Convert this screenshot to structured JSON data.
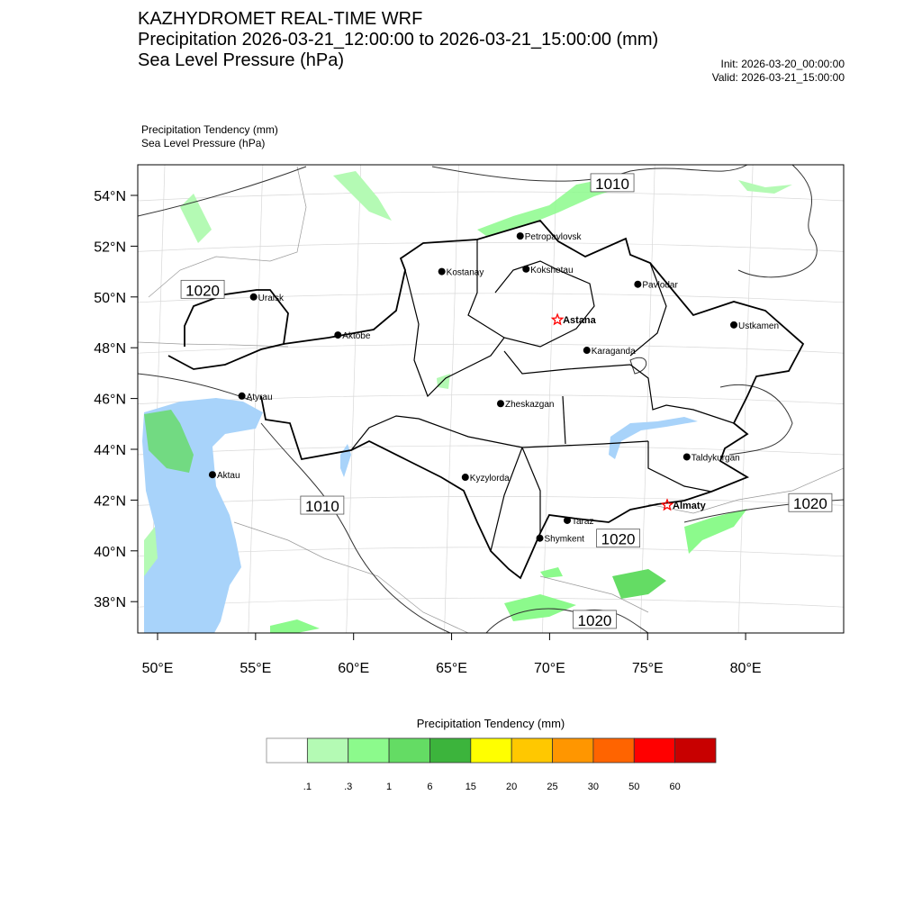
{
  "header": {
    "title": "KAZHYDROMET REAL-TIME WRF",
    "subtitle_precip": "Precipitation 2026-03-21_12:00:00 to 2026-03-21_15:00:00 (mm)",
    "subtitle_slp": "Sea Level Pressure  (hPa)",
    "init": "Init: 2026-03-20_00:00:00",
    "valid": "Valid: 2026-03-21_15:00:00"
  },
  "map_labels": {
    "field1": "Precipitation Tendency   (mm)",
    "field2": "Sea Level Pressure   (hPa)"
  },
  "axes": {
    "lat_ticks": [
      "54°N",
      "52°N",
      "50°N",
      "48°N",
      "46°N",
      "44°N",
      "42°N",
      "40°N",
      "38°N"
    ],
    "lat_values": [
      54,
      52,
      50,
      48,
      46,
      44,
      42,
      40,
      38
    ],
    "lon_ticks": [
      "50°E",
      "55°E",
      "60°E",
      "65°E",
      "70°E",
      "75°E",
      "80°E"
    ],
    "lon_values": [
      50,
      55,
      60,
      65,
      70,
      75,
      80
    ]
  },
  "cities": [
    {
      "name": "Petropavlovsk",
      "lon": 68.5,
      "lat": 52.4
    },
    {
      "name": "Kostanay",
      "lon": 64.5,
      "lat": 51.0
    },
    {
      "name": "Kokshetau",
      "lon": 68.8,
      "lat": 51.1
    },
    {
      "name": "Pavlodar",
      "lon": 74.5,
      "lat": 50.5
    },
    {
      "name": "Uralsk",
      "lon": 54.9,
      "lat": 50.0
    },
    {
      "name": "Astana",
      "lon": 70.4,
      "lat": 49.1,
      "capital": true
    },
    {
      "name": "Aktobe",
      "lon": 59.2,
      "lat": 48.5
    },
    {
      "name": "Ustkamen",
      "lon": 79.4,
      "lat": 48.9
    },
    {
      "name": "Karaganda",
      "lon": 71.9,
      "lat": 47.9
    },
    {
      "name": "Atyrau",
      "lon": 54.3,
      "lat": 46.1
    },
    {
      "name": "Zheskazgan",
      "lon": 67.5,
      "lat": 45.8
    },
    {
      "name": "Aktau",
      "lon": 52.8,
      "lat": 43.0
    },
    {
      "name": "Kyzylorda",
      "lon": 65.7,
      "lat": 42.9
    },
    {
      "name": "Taldykurgan",
      "lon": 77.0,
      "lat": 43.7
    },
    {
      "name": "Almaty",
      "lon": 76.0,
      "lat": 41.8,
      "capital": true
    },
    {
      "name": "Taraz",
      "lon": 70.9,
      "lat": 41.2
    },
    {
      "name": "Shymkent",
      "lon": 69.5,
      "lat": 40.5
    }
  ],
  "isobar_labels": [
    {
      "text": "1010",
      "lon": 73.2,
      "lat": 54.5
    },
    {
      "text": "1020",
      "lon": 52.3,
      "lat": 50.3
    },
    {
      "text": "1010",
      "lon": 58.4,
      "lat": 41.8
    },
    {
      "text": "1020",
      "lon": 83.3,
      "lat": 41.9
    },
    {
      "text": "1020",
      "lon": 73.5,
      "lat": 40.5
    },
    {
      "text": "1020",
      "lon": 72.3,
      "lat": 37.3
    }
  ],
  "legend": {
    "title": "Precipitation Tendency (mm)",
    "labels": [
      ".1",
      ".3",
      "1",
      "6",
      "15",
      "20",
      "25",
      "30",
      "50",
      "60"
    ],
    "colors": [
      "#ffffff",
      "#b4fab4",
      "#8cfa8c",
      "#64dc64",
      "#3cb43c",
      "#ffff00",
      "#ffc800",
      "#ff9600",
      "#ff6400",
      "#ff0000",
      "#c80000"
    ]
  },
  "colors": {
    "water": "#a8d3fa",
    "capital_star": "#ff0000"
  }
}
